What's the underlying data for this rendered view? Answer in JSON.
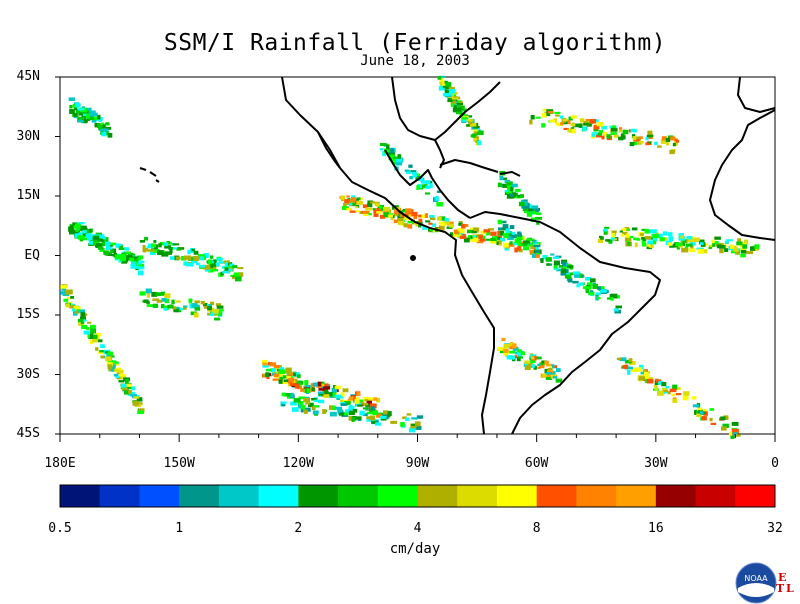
{
  "title": "SSM/I Rainfall (Ferriday algorithm)",
  "subtitle": "June 18, 2003",
  "map": {
    "extent": {
      "lon": [
        -180,
        0
      ],
      "lat": [
        -45,
        45
      ]
    },
    "lat_ticks": [
      "45N",
      "30N",
      "15N",
      "EQ",
      "15S",
      "30S",
      "45S"
    ],
    "lon_ticks": [
      "180E",
      "150W",
      "120W",
      "90W",
      "60W",
      "30W",
      "0"
    ],
    "land_outline_color": "#000000",
    "ocean_color": "#ffffff"
  },
  "colorbar": {
    "units": "cm/day",
    "labels": [
      "0.5",
      "1",
      "2",
      "4",
      "8",
      "16",
      "32"
    ],
    "colors": [
      "#001478",
      "#0032c8",
      "#0050ff",
      "#00968c",
      "#00c8c8",
      "#00ffff",
      "#009600",
      "#00c800",
      "#00ff00",
      "#afaf00",
      "#dcdc00",
      "#ffff00",
      "#ff5000",
      "#ff8200",
      "#ffa000",
      "#960000",
      "#c80000",
      "#ff0000"
    ]
  },
  "logo": {
    "text": "NOAA",
    "corner_letters": [
      "E",
      "T",
      "L"
    ]
  }
}
